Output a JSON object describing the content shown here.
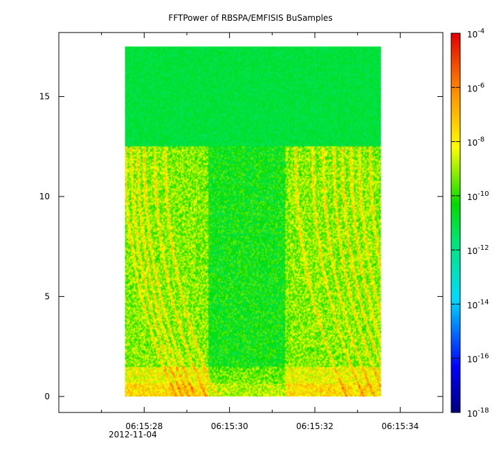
{
  "chart_data": {
    "type": "heatmap",
    "title": "FFTPower of RBSPA/EMFISIS  BuSamples",
    "xlabel": "",
    "ylabel": "",
    "x_ticks": [
      "06:15:28",
      "06:15:30",
      "06:15:32",
      "06:15:34"
    ],
    "x_tick_values": [
      28,
      30,
      32,
      34
    ],
    "x_date_label": "2012-11-04",
    "xlim": [
      26.0,
      35.0
    ],
    "x_data_range": [
      27.55,
      33.55
    ],
    "y_ticks": [
      "0",
      "5",
      "10",
      "15"
    ],
    "y_tick_values": [
      0,
      5,
      10,
      15
    ],
    "ylim": [
      -0.8,
      18.2
    ],
    "y_data_range": [
      0,
      17.5
    ],
    "colorbar": {
      "scale": "log",
      "range": [
        1e-18,
        0.0001
      ],
      "tick_exponents": [
        "-4",
        "-6",
        "-8",
        "-10",
        "-12",
        "-14",
        "-16",
        "-18"
      ],
      "tick_base": "10"
    },
    "features": {
      "background_level_exp": -11,
      "low_band_level_exp": -8,
      "band_cutoff_y": 12.5,
      "dispersive_tones_start_x": [
        27.55,
        27.7,
        27.85,
        28.0,
        28.25,
        28.5,
        31.55,
        31.95,
        32.2,
        32.45,
        32.65,
        32.85,
        33.05,
        33.3
      ]
    }
  }
}
